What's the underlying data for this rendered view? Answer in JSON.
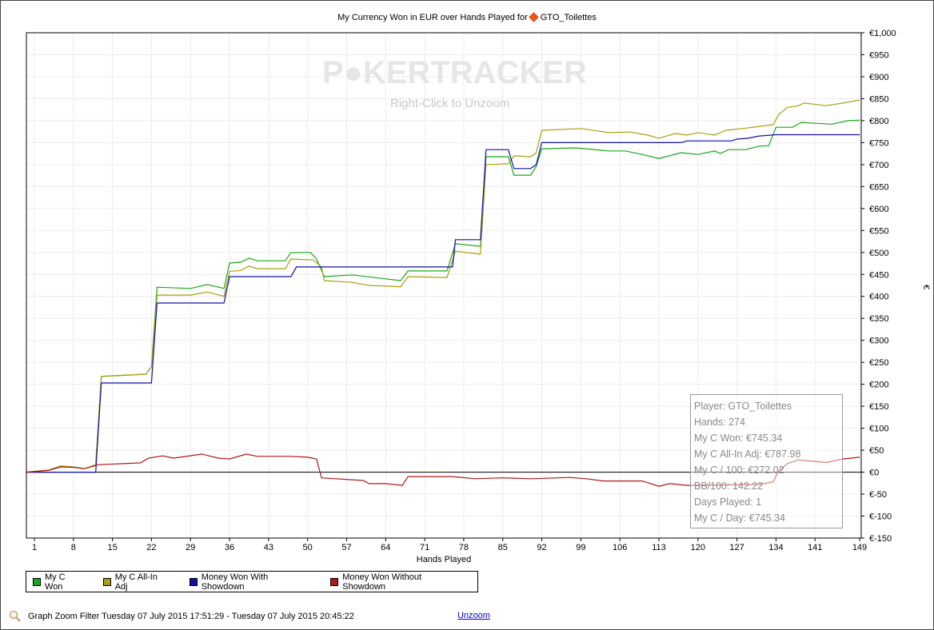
{
  "chart_data": {
    "type": "line",
    "title": "My Currency Won in EUR over Hands Played for",
    "player": "GTO_Toilettes",
    "xlabel": "Hands Played",
    "ylabel": "€",
    "xlim": [
      -0.5,
      149.3
    ],
    "ylim": [
      -150,
      1000
    ],
    "xticks": [
      "1",
      "8",
      "15",
      "22",
      "29",
      "36",
      "43",
      "50",
      "57",
      "64",
      "71",
      "78",
      "85",
      "92",
      "99",
      "106",
      "113",
      "120",
      "127",
      "134",
      "141",
      "149"
    ],
    "yticks": [
      "€1,000",
      "€950",
      "€900",
      "€850",
      "€800",
      "€750",
      "€700",
      "€650",
      "€600",
      "€550",
      "€500",
      "€450",
      "€400",
      "€350",
      "€300",
      "€250",
      "€200",
      "€150",
      "€100",
      "€50",
      "€0",
      "€-50",
      "€-100",
      "€-150"
    ],
    "grid": true,
    "series": [
      {
        "name": "My C Won",
        "color": "#18a818",
        "points": [
          [
            -0.5,
            0
          ],
          [
            3.6,
            5
          ],
          [
            5.7,
            14
          ],
          [
            7.9,
            12
          ],
          [
            10,
            8
          ],
          [
            12,
            17
          ],
          [
            13,
            218
          ],
          [
            21,
            223
          ],
          [
            22,
            240
          ],
          [
            23,
            421
          ],
          [
            29,
            418
          ],
          [
            32,
            427
          ],
          [
            35,
            418
          ],
          [
            36,
            476
          ],
          [
            38,
            478
          ],
          [
            39.5,
            487
          ],
          [
            41,
            481
          ],
          [
            46,
            481
          ],
          [
            47,
            500
          ],
          [
            50.5,
            500
          ],
          [
            51.6,
            485
          ],
          [
            53,
            445
          ],
          [
            58,
            449
          ],
          [
            64,
            440
          ],
          [
            66.7,
            436
          ],
          [
            68,
            458
          ],
          [
            75,
            458
          ],
          [
            76.5,
            520
          ],
          [
            81,
            514
          ],
          [
            82,
            718
          ],
          [
            86,
            718
          ],
          [
            87,
            676
          ],
          [
            90,
            676
          ],
          [
            91,
            696
          ],
          [
            92,
            736
          ],
          [
            98,
            738
          ],
          [
            100,
            736
          ],
          [
            104,
            731
          ],
          [
            107,
            731
          ],
          [
            110,
            723
          ],
          [
            113,
            714
          ],
          [
            117,
            727
          ],
          [
            120,
            723
          ],
          [
            123,
            731
          ],
          [
            124,
            725
          ],
          [
            125.5,
            734
          ],
          [
            128.5,
            734
          ],
          [
            131,
            742
          ],
          [
            132.7,
            743
          ],
          [
            134,
            785
          ],
          [
            137,
            785
          ],
          [
            138.5,
            796
          ],
          [
            141,
            794
          ],
          [
            144,
            792
          ],
          [
            147,
            800
          ],
          [
            149,
            801
          ]
        ]
      },
      {
        "name": "My C All-In Adj",
        "color": "#a8a010",
        "points": [
          [
            -0.5,
            0
          ],
          [
            3.6,
            5
          ],
          [
            5.7,
            14
          ],
          [
            7.9,
            12
          ],
          [
            10,
            8
          ],
          [
            12,
            17
          ],
          [
            13,
            218
          ],
          [
            21,
            223
          ],
          [
            22,
            240
          ],
          [
            23,
            403
          ],
          [
            29,
            403
          ],
          [
            32,
            410
          ],
          [
            35,
            400
          ],
          [
            36,
            457
          ],
          [
            38,
            459
          ],
          [
            39.5,
            469
          ],
          [
            41,
            463
          ],
          [
            46,
            463
          ],
          [
            47,
            485
          ],
          [
            51,
            483
          ],
          [
            52.5,
            467
          ],
          [
            53,
            436
          ],
          [
            58,
            432
          ],
          [
            61,
            425
          ],
          [
            66.7,
            422
          ],
          [
            68,
            445
          ],
          [
            75,
            443
          ],
          [
            76.5,
            503
          ],
          [
            81,
            496
          ],
          [
            82,
            700
          ],
          [
            86,
            702
          ],
          [
            87,
            720
          ],
          [
            90,
            718
          ],
          [
            91,
            727
          ],
          [
            92,
            778
          ],
          [
            99,
            782
          ],
          [
            104,
            773
          ],
          [
            108,
            774
          ],
          [
            111,
            767
          ],
          [
            113,
            760
          ],
          [
            116,
            771
          ],
          [
            118,
            767
          ],
          [
            120,
            773
          ],
          [
            123,
            767
          ],
          [
            125,
            778
          ],
          [
            128,
            782
          ],
          [
            131,
            787
          ],
          [
            133.5,
            791
          ],
          [
            134.5,
            814
          ],
          [
            136,
            830
          ],
          [
            138,
            834
          ],
          [
            139,
            840
          ],
          [
            143,
            834
          ],
          [
            146,
            840
          ],
          [
            149,
            847
          ]
        ]
      },
      {
        "name": "Money Won With Showdown",
        "color": "#1010a8",
        "points": [
          [
            -0.5,
            0
          ],
          [
            12,
            0
          ],
          [
            13,
            203
          ],
          [
            22,
            203
          ],
          [
            23,
            385
          ],
          [
            35,
            385
          ],
          [
            36,
            445
          ],
          [
            47,
            445
          ],
          [
            48,
            467
          ],
          [
            76,
            467
          ],
          [
            76.5,
            529
          ],
          [
            81,
            529
          ],
          [
            82,
            734
          ],
          [
            86,
            734
          ],
          [
            87,
            691
          ],
          [
            90,
            691
          ],
          [
            91,
            700
          ],
          [
            92,
            750
          ],
          [
            117,
            750
          ],
          [
            118,
            754
          ],
          [
            126,
            754
          ],
          [
            127,
            758
          ],
          [
            129,
            760
          ],
          [
            131,
            765
          ],
          [
            134,
            768
          ],
          [
            149,
            768
          ]
        ]
      },
      {
        "name": "Money Won Without Showdown",
        "color": "#b01818",
        "points": [
          [
            -0.5,
            0
          ],
          [
            3.6,
            4
          ],
          [
            5.7,
            12
          ],
          [
            7.9,
            11
          ],
          [
            10,
            8
          ],
          [
            12,
            15
          ],
          [
            12.5,
            17
          ],
          [
            20,
            21
          ],
          [
            21.5,
            32
          ],
          [
            24,
            37
          ],
          [
            26,
            32
          ],
          [
            31,
            41
          ],
          [
            34,
            32
          ],
          [
            36,
            30
          ],
          [
            39,
            41
          ],
          [
            41,
            36
          ],
          [
            47,
            36
          ],
          [
            50,
            34
          ],
          [
            51.6,
            30
          ],
          [
            52.5,
            -13
          ],
          [
            55,
            -15
          ],
          [
            60,
            -19
          ],
          [
            61,
            -26
          ],
          [
            64,
            -26
          ],
          [
            67,
            -30
          ],
          [
            68,
            -10
          ],
          [
            76,
            -10
          ],
          [
            80,
            -15
          ],
          [
            85,
            -13
          ],
          [
            90,
            -15
          ],
          [
            97,
            -12
          ],
          [
            100,
            -15
          ],
          [
            103,
            -20
          ],
          [
            110,
            -20
          ],
          [
            113,
            -32
          ],
          [
            115,
            -26
          ],
          [
            118,
            -30
          ],
          [
            131,
            -28
          ],
          [
            133.5,
            -22
          ],
          [
            134.5,
            3
          ],
          [
            136,
            19
          ],
          [
            138,
            28
          ],
          [
            143,
            22
          ],
          [
            146,
            30
          ],
          [
            149,
            34
          ]
        ]
      }
    ]
  },
  "watermark": {
    "logo": "POKERTRACKER",
    "hint": "Right-Click to Unzoom"
  },
  "stats": [
    "Player: GTO_Toilettes",
    "Hands: 274",
    "My C Won: €745.34",
    "My C All-In Adj: €787.98",
    "My C / 100: €272.02",
    "BB/100: 142.22",
    "Days Played: 1",
    "My C / Day: €745.34"
  ],
  "footer": {
    "filter": "Graph Zoom Filter Tuesday 07 July 2015 17:51:29 - Tuesday 07 July 2015 20:45:22",
    "unzoom": "Unzoom"
  }
}
